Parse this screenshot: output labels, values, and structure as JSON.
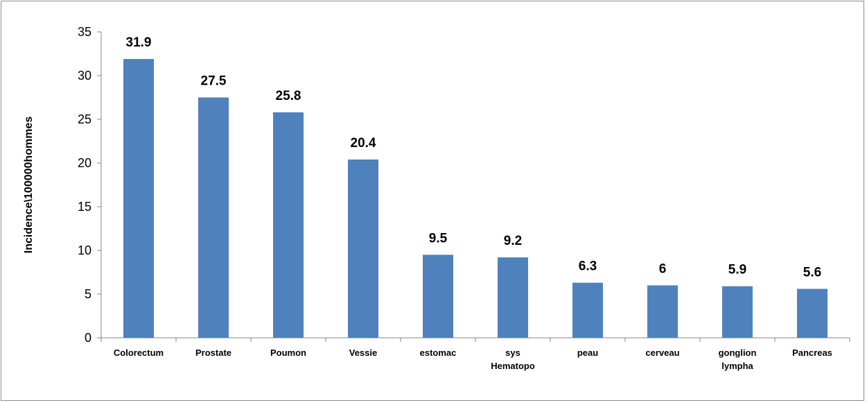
{
  "chart_data": {
    "type": "bar",
    "title": "",
    "xlabel": "",
    "ylabel": "Incidence\\100000hommes",
    "categories": [
      [
        "Colorectum"
      ],
      [
        "Prostate"
      ],
      [
        "Poumon"
      ],
      [
        "Vessie"
      ],
      [
        "estomac"
      ],
      [
        "sys",
        "Hematopo"
      ],
      [
        "peau"
      ],
      [
        "cerveau"
      ],
      [
        "gonglion",
        "lympha"
      ],
      [
        "Pancreas"
      ]
    ],
    "values": [
      31.9,
      27.5,
      25.8,
      20.4,
      9.5,
      9.2,
      6.3,
      6,
      5.9,
      5.6
    ],
    "data_labels": [
      "31.9",
      "27.5",
      "25.8",
      "20.4",
      "9.5",
      "9.2",
      "6.3",
      "6",
      "5.9",
      "5.6"
    ],
    "ylim": [
      0,
      35
    ],
    "yticks": [
      0,
      5,
      10,
      15,
      20,
      25,
      30,
      35
    ],
    "grid": false,
    "legend": "none",
    "bar_color": "#4f81bd"
  }
}
